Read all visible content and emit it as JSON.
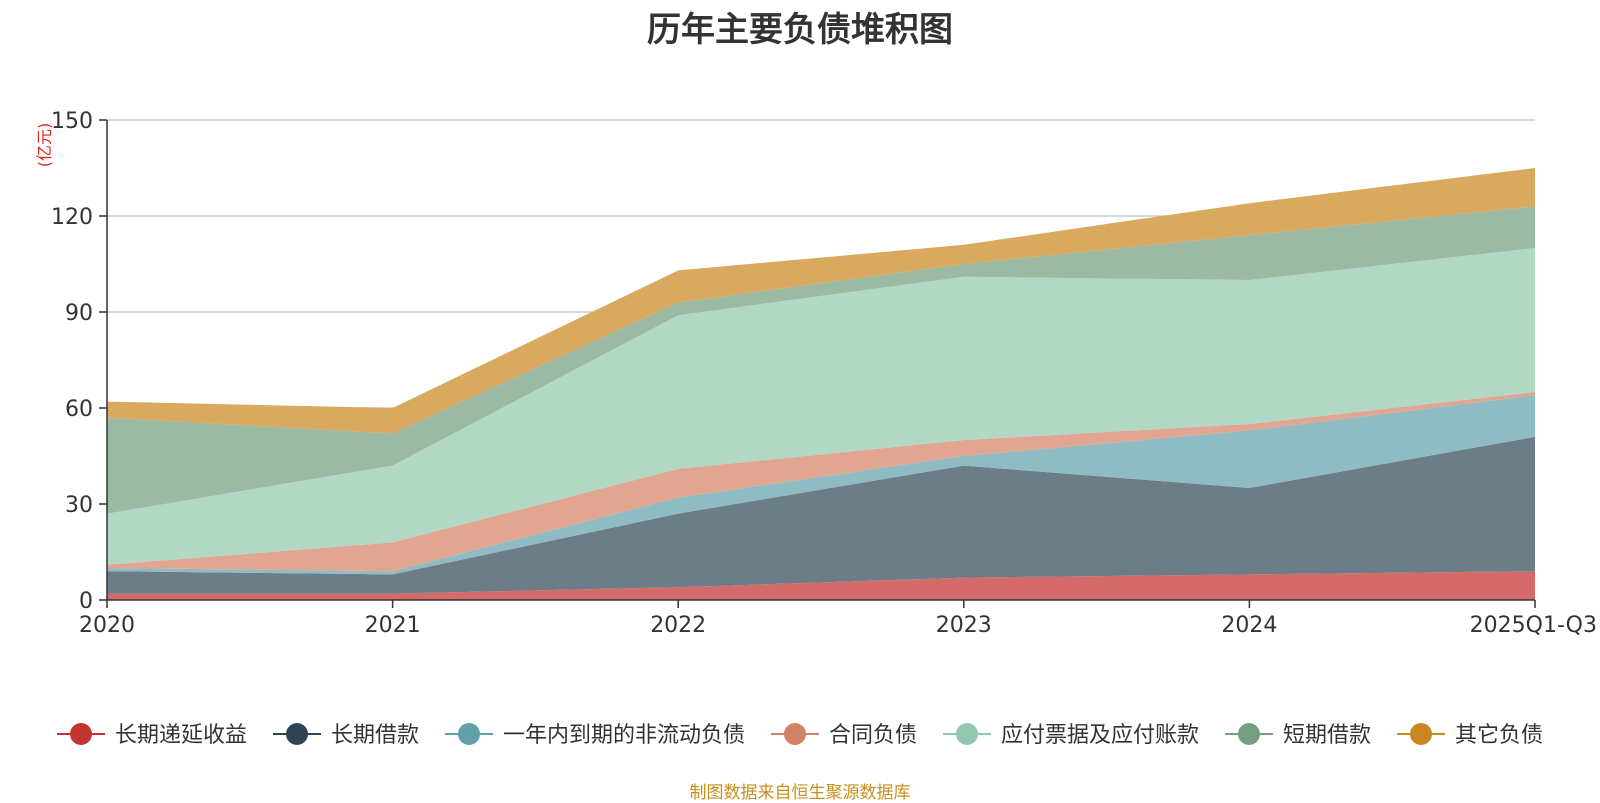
{
  "chart_data": {
    "type": "area",
    "stacked": true,
    "title": "历年主要负债堆积图",
    "unit_label": "(亿元)",
    "source_note": "制图数据来自恒生聚源数据库",
    "categories": [
      "2020",
      "2021",
      "2022",
      "2023",
      "2024",
      "2025Q1-Q3"
    ],
    "ylim": [
      0,
      150
    ],
    "yticks": [
      0,
      30,
      60,
      90,
      120,
      150
    ],
    "grid": true,
    "legend_position": "bottom",
    "series": [
      {
        "name": "长期递延收益",
        "values": [
          2,
          2,
          4,
          7,
          8,
          9
        ],
        "color": "#c23531",
        "fill": "#d46a6a"
      },
      {
        "name": "长期借款",
        "values": [
          7,
          6,
          23,
          35,
          27,
          42
        ],
        "color": "#2f4554",
        "fill": "#6d7d88"
      },
      {
        "name": "一年内到期的非流动负债",
        "values": [
          1,
          1,
          5,
          3,
          18,
          13
        ],
        "color": "#61a0a8",
        "fill": "#8fbcc2"
      },
      {
        "name": "合同负债",
        "values": [
          1,
          9,
          9,
          5,
          2,
          1
        ],
        "color": "#d48265",
        "fill": "#e2a592"
      },
      {
        "name": "应付票据及应付账款",
        "values": [
          16,
          24,
          48,
          51,
          45,
          45
        ],
        "color": "#91c7ae",
        "fill": "#b1d8c5"
      },
      {
        "name": "短期借款",
        "values": [
          30,
          10,
          4,
          4,
          14,
          13
        ],
        "color": "#749f83",
        "fill": "#9cb9a4"
      },
      {
        "name": "其它负债",
        "values": [
          5,
          8,
          10,
          6,
          10,
          12
        ],
        "color": "#ca8622",
        "fill": "#d8a95e"
      }
    ]
  }
}
